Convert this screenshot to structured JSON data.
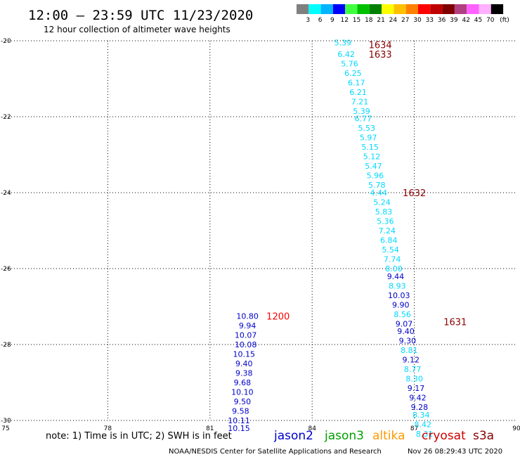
{
  "header": {
    "title": "12:00 – 23:59 UTC 11/23/2020",
    "subtitle": "12 hour collection of altimeter wave heights"
  },
  "legend": {
    "unit": "(ft)",
    "bins": [
      {
        "label": "3",
        "color": "#808080"
      },
      {
        "label": "6",
        "color": "#00ffff"
      },
      {
        "label": "9",
        "color": "#00b4ff"
      },
      {
        "label": "12",
        "color": "#0000ff"
      },
      {
        "label": "15",
        "color": "#40ff40"
      },
      {
        "label": "18",
        "color": "#00c000"
      },
      {
        "label": "21",
        "color": "#008000"
      },
      {
        "label": "24",
        "color": "#ffff00"
      },
      {
        "label": "27",
        "color": "#ffc000"
      },
      {
        "label": "30",
        "color": "#ff8000"
      },
      {
        "label": "33",
        "color": "#ff0000"
      },
      {
        "label": "36",
        "color": "#c00000"
      },
      {
        "label": "39",
        "color": "#800000"
      },
      {
        "label": "42",
        "color": "#b04080"
      },
      {
        "label": "45",
        "color": "#ff60ff"
      },
      {
        "label": "70",
        "color": "#ffb0ff"
      },
      {
        "label": "",
        "color": "#000000"
      }
    ]
  },
  "footer": {
    "note": "note: 1) Time is in UTC; 2) SWH is in feet",
    "credit": "NOAA/NESDIS Center for Satellite Applications and Research",
    "timestamp": "Nov 26 08:29:43 UTC 2020",
    "satellites": [
      {
        "name": "jason2",
        "color": "#0000cc"
      },
      {
        "name": "jason3",
        "color": "#00a000"
      },
      {
        "name": "altika",
        "color": "#ff9900"
      },
      {
        "name": "cryosat",
        "color": "#cc0000"
      },
      {
        "name": "s3a",
        "color": "#880000"
      }
    ]
  },
  "chart_data": {
    "type": "scatter",
    "xlim": [
      75,
      90
    ],
    "ylim": [
      -30,
      -20
    ],
    "x_ticks": [
      75,
      78,
      81,
      84,
      87,
      90
    ],
    "y_ticks": [
      -20,
      -22,
      -24,
      -26,
      -28,
      -30
    ],
    "grid": true,
    "colors": {
      "cyan": "#00d8ff",
      "blue": "#0000cc",
      "time_red": "#ff0000",
      "time_darkred": "#880000"
    },
    "time_labels": [
      {
        "text": "1634",
        "lon": 86.0,
        "lat": -20.1,
        "color": "time_darkred"
      },
      {
        "text": "1633",
        "lon": 86.0,
        "lat": -20.35,
        "color": "time_darkred"
      },
      {
        "text": "1632",
        "lon": 87.0,
        "lat": -24.0,
        "color": "time_darkred"
      },
      {
        "text": "1631",
        "lon": 88.2,
        "lat": -27.4,
        "color": "time_darkred"
      },
      {
        "text": "1200",
        "lon": 83.0,
        "lat": -27.25,
        "color": "time_red"
      }
    ],
    "points": [
      {
        "lon": 84.9,
        "lat": -20.05,
        "value": "5.39",
        "color": "cyan"
      },
      {
        "lon": 85.0,
        "lat": -20.35,
        "value": "6.42",
        "color": "cyan"
      },
      {
        "lon": 85.1,
        "lat": -20.6,
        "value": "5.76",
        "color": "cyan"
      },
      {
        "lon": 85.2,
        "lat": -20.85,
        "value": "6.25",
        "color": "cyan"
      },
      {
        "lon": 85.3,
        "lat": -21.1,
        "value": "6.17",
        "color": "cyan"
      },
      {
        "lon": 85.35,
        "lat": -21.35,
        "value": "6.21",
        "color": "cyan"
      },
      {
        "lon": 85.4,
        "lat": -21.6,
        "value": "7.21",
        "color": "cyan"
      },
      {
        "lon": 85.45,
        "lat": -21.85,
        "value": "5.39",
        "color": "cyan"
      },
      {
        "lon": 85.5,
        "lat": -22.05,
        "value": "6.77",
        "color": "cyan"
      },
      {
        "lon": 85.6,
        "lat": -22.3,
        "value": "5.53",
        "color": "cyan"
      },
      {
        "lon": 85.65,
        "lat": -22.55,
        "value": "5.97",
        "color": "cyan"
      },
      {
        "lon": 85.7,
        "lat": -22.8,
        "value": "5.15",
        "color": "cyan"
      },
      {
        "lon": 85.75,
        "lat": -23.05,
        "value": "5.12",
        "color": "cyan"
      },
      {
        "lon": 85.8,
        "lat": -23.3,
        "value": "5.47",
        "color": "cyan"
      },
      {
        "lon": 85.85,
        "lat": -23.55,
        "value": "5.96",
        "color": "cyan"
      },
      {
        "lon": 85.9,
        "lat": -23.8,
        "value": "5.78",
        "color": "cyan"
      },
      {
        "lon": 85.95,
        "lat": -24.0,
        "value": "4.44",
        "color": "cyan"
      },
      {
        "lon": 86.05,
        "lat": -24.25,
        "value": "5.24",
        "color": "cyan"
      },
      {
        "lon": 86.1,
        "lat": -24.5,
        "value": "5.83",
        "color": "cyan"
      },
      {
        "lon": 86.15,
        "lat": -24.75,
        "value": "5.36",
        "color": "cyan"
      },
      {
        "lon": 86.2,
        "lat": -25.0,
        "value": "7.24",
        "color": "cyan"
      },
      {
        "lon": 86.25,
        "lat": -25.25,
        "value": "6.84",
        "color": "cyan"
      },
      {
        "lon": 86.3,
        "lat": -25.5,
        "value": "5.54",
        "color": "cyan"
      },
      {
        "lon": 86.35,
        "lat": -25.75,
        "value": "7.74",
        "color": "cyan"
      },
      {
        "lon": 86.4,
        "lat": -26.0,
        "value": "8.00",
        "color": "cyan"
      },
      {
        "lon": 86.45,
        "lat": -26.2,
        "value": "9.44",
        "color": "blue"
      },
      {
        "lon": 86.5,
        "lat": -26.45,
        "value": "8.93",
        "color": "cyan"
      },
      {
        "lon": 86.55,
        "lat": -26.7,
        "value": "10.03",
        "color": "blue"
      },
      {
        "lon": 86.6,
        "lat": -26.95,
        "value": "9.90",
        "color": "blue"
      },
      {
        "lon": 86.65,
        "lat": -27.2,
        "value": "8.56",
        "color": "cyan"
      },
      {
        "lon": 86.7,
        "lat": -27.45,
        "value": "9.07",
        "color": "blue"
      },
      {
        "lon": 86.75,
        "lat": -27.65,
        "value": "9.40",
        "color": "blue"
      },
      {
        "lon": 86.8,
        "lat": -27.9,
        "value": "9.30",
        "color": "blue"
      },
      {
        "lon": 86.85,
        "lat": -28.15,
        "value": "8.81",
        "color": "cyan"
      },
      {
        "lon": 86.9,
        "lat": -28.4,
        "value": "9.12",
        "color": "blue"
      },
      {
        "lon": 86.95,
        "lat": -28.65,
        "value": "8.77",
        "color": "cyan"
      },
      {
        "lon": 87.0,
        "lat": -28.9,
        "value": "8.30",
        "color": "cyan"
      },
      {
        "lon": 87.05,
        "lat": -29.15,
        "value": "9.17",
        "color": "blue"
      },
      {
        "lon": 87.1,
        "lat": -29.4,
        "value": "9.42",
        "color": "blue"
      },
      {
        "lon": 87.15,
        "lat": -29.65,
        "value": "9.28",
        "color": "blue"
      },
      {
        "lon": 87.2,
        "lat": -29.85,
        "value": "8.34",
        "color": "cyan"
      },
      {
        "lon": 87.25,
        "lat": -30.1,
        "value": "8.42",
        "color": "cyan"
      },
      {
        "lon": 87.3,
        "lat": -30.35,
        "value": "8.31",
        "color": "cyan"
      },
      {
        "lon": 82.1,
        "lat": -27.25,
        "value": "10.80",
        "color": "blue"
      },
      {
        "lon": 82.1,
        "lat": -27.5,
        "value": "9.94",
        "color": "blue"
      },
      {
        "lon": 82.05,
        "lat": -27.75,
        "value": "10.07",
        "color": "blue"
      },
      {
        "lon": 82.05,
        "lat": -28.0,
        "value": "10.08",
        "color": "blue"
      },
      {
        "lon": 82.0,
        "lat": -28.25,
        "value": "10.15",
        "color": "blue"
      },
      {
        "lon": 82.0,
        "lat": -28.5,
        "value": "9.40",
        "color": "blue"
      },
      {
        "lon": 82.0,
        "lat": -28.75,
        "value": "9.38",
        "color": "blue"
      },
      {
        "lon": 81.95,
        "lat": -29.0,
        "value": "9.68",
        "color": "blue"
      },
      {
        "lon": 81.95,
        "lat": -29.25,
        "value": "10.10",
        "color": "blue"
      },
      {
        "lon": 81.95,
        "lat": -29.5,
        "value": "9.50",
        "color": "blue"
      },
      {
        "lon": 81.9,
        "lat": -29.75,
        "value": "9.58",
        "color": "blue"
      },
      {
        "lon": 81.85,
        "lat": -30.0,
        "value": "10.11",
        "color": "blue"
      },
      {
        "lon": 81.85,
        "lat": -30.2,
        "value": "10.15",
        "color": "blue"
      }
    ]
  }
}
